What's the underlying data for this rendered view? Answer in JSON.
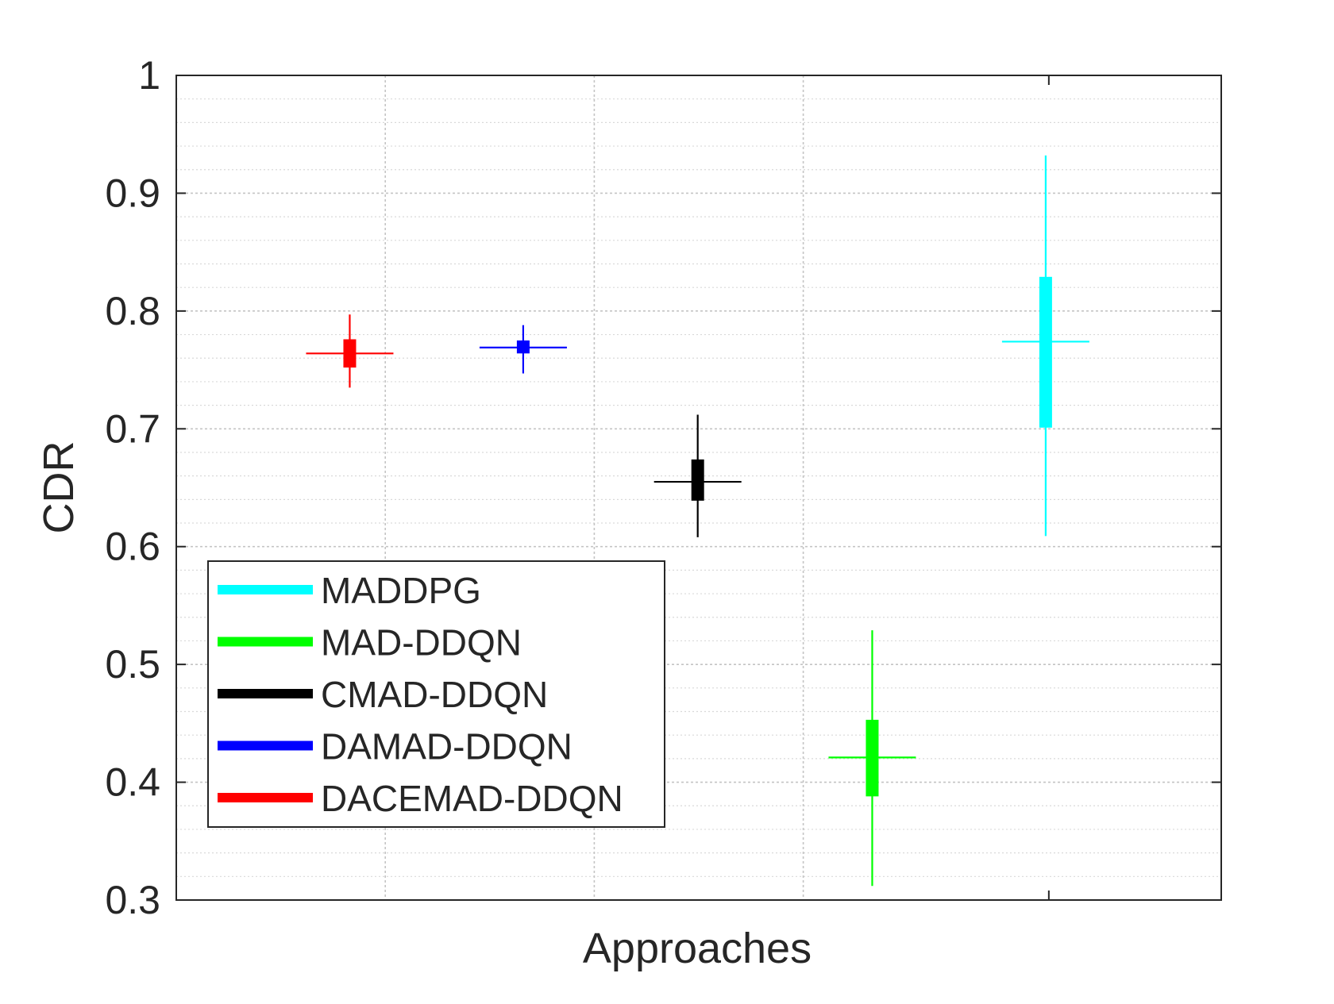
{
  "chart_data": {
    "type": "box",
    "xlabel": "Approaches",
    "ylabel": "CDR",
    "ylim": [
      0.3,
      1.0
    ],
    "yticks": [
      "0.3",
      "0.4",
      "0.5",
      "0.6",
      "0.7",
      "0.8",
      "0.9",
      "1"
    ],
    "grid": true,
    "minor_grid": true,
    "legend_position": "lower-left",
    "series": [
      {
        "name": "MADDPG",
        "color": "#00ffff",
        "whisker_low": 0.609,
        "q1": 0.701,
        "median": 0.774,
        "q3": 0.829,
        "whisker_high": 0.932
      },
      {
        "name": "MAD-DDQN",
        "color": "#00ff00",
        "whisker_low": 0.312,
        "q1": 0.388,
        "median": 0.421,
        "q3": 0.453,
        "whisker_high": 0.529
      },
      {
        "name": "CMAD-DDQN",
        "color": "#000000",
        "whisker_low": 0.608,
        "q1": 0.639,
        "median": 0.655,
        "q3": 0.674,
        "whisker_high": 0.712
      },
      {
        "name": "DAMAD-DDQN",
        "color": "#0000ff",
        "whisker_low": 0.747,
        "q1": 0.764,
        "median": 0.769,
        "q3": 0.775,
        "whisker_high": 0.788
      },
      {
        "name": "DACEMAD-DDQN",
        "color": "#ff0000",
        "whisker_low": 0.735,
        "q1": 0.752,
        "median": 0.764,
        "q3": 0.776,
        "whisker_high": 0.797
      }
    ]
  }
}
